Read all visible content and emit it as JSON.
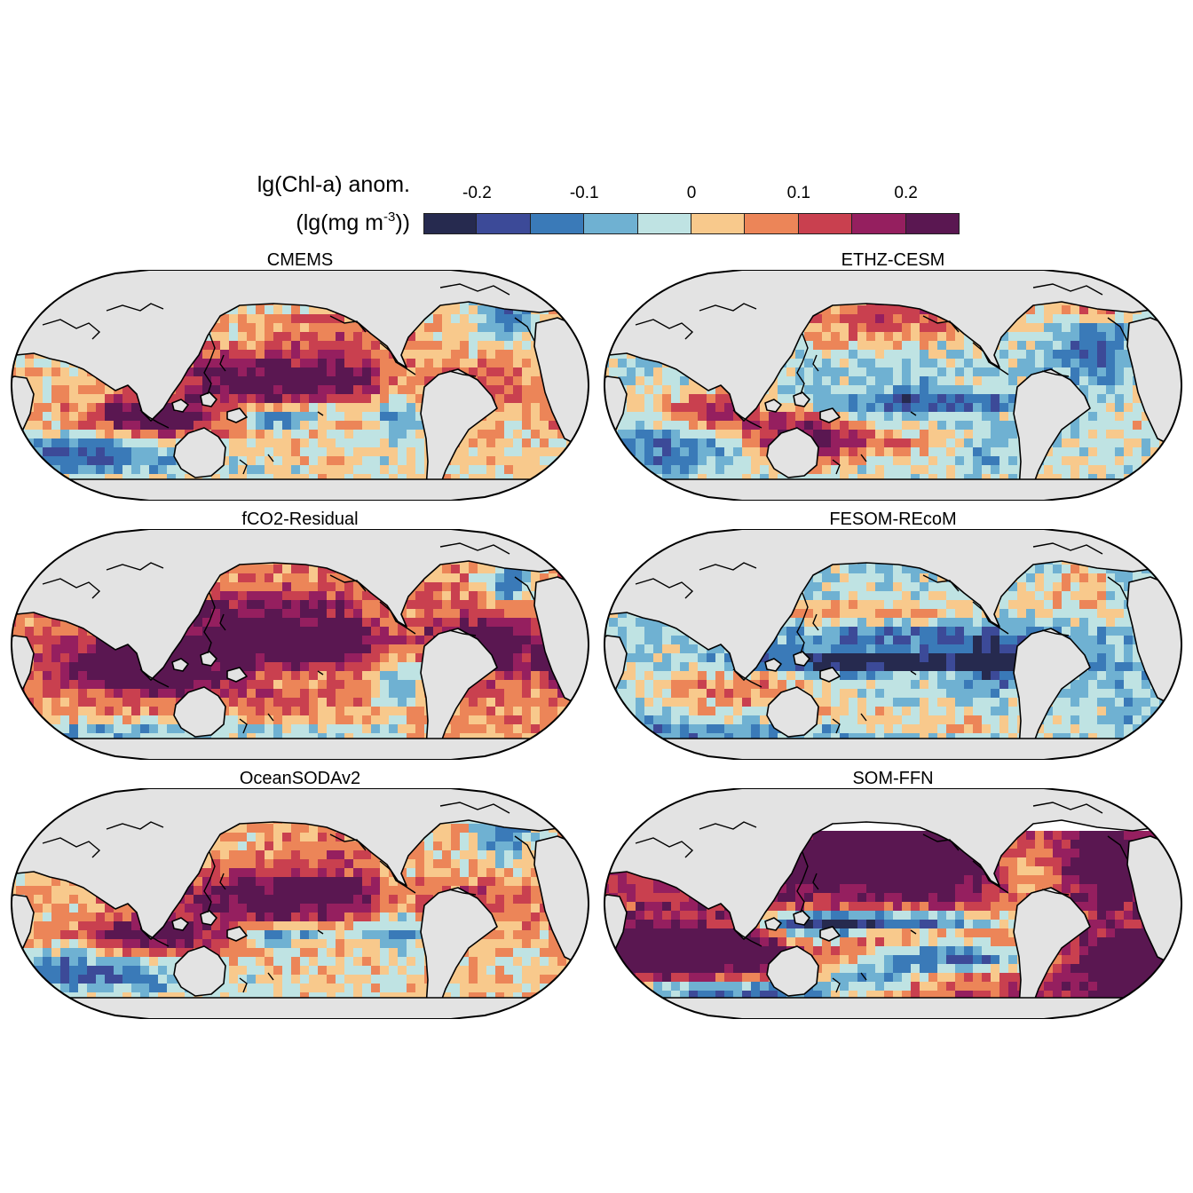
{
  "colorbar": {
    "title_line1": "lg(Chl-a) anom.",
    "title_line2_prefix": "(lg(mg m",
    "title_line2_exponent": "-3",
    "title_line2_suffix": "))",
    "ticks": [
      "-0.2",
      "-0.1",
      "0",
      "0.1",
      "0.2"
    ],
    "tick_values": [
      -0.2,
      -0.1,
      0,
      0.1,
      0.2
    ],
    "bin_edges": [
      -0.25,
      -0.2,
      -0.15,
      -0.1,
      -0.05,
      0,
      0.05,
      0.1,
      0.15,
      0.2,
      0.25
    ],
    "colors": [
      "#262a4f",
      "#3c4a98",
      "#3a7ab8",
      "#6fb1d2",
      "#bfe3e3",
      "#f8c98c",
      "#ec8558",
      "#c9404f",
      "#951f5f",
      "#5a1751"
    ]
  },
  "colors": {
    "land": "#e3e3e3",
    "coastline": "#000000",
    "missing": "#ffffff"
  },
  "panels": [
    {
      "title": "CMEMS",
      "style": "observed"
    },
    {
      "title": "ETHZ-CESM",
      "style": "model-a"
    },
    {
      "title": "fCO2-Residual",
      "style": "warm"
    },
    {
      "title": "FESOM-REcoM",
      "style": "model-b"
    },
    {
      "title": "OceanSODAv2",
      "style": "observed"
    },
    {
      "title": "SOM-FFN",
      "style": "strong"
    }
  ]
}
